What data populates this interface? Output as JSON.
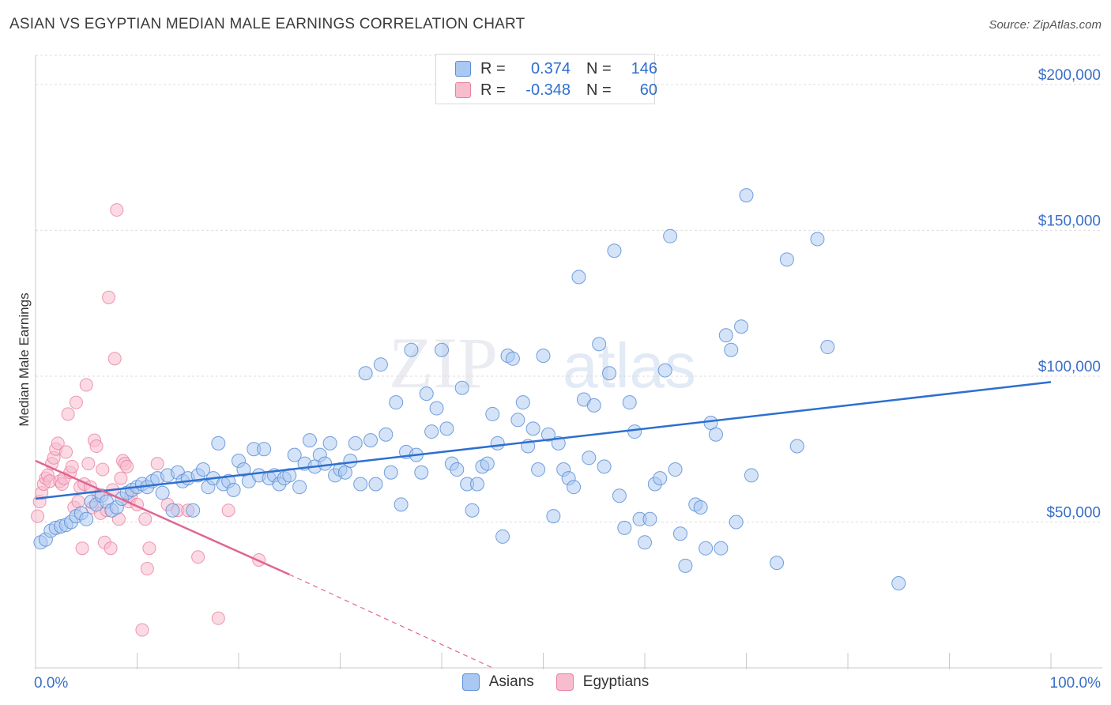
{
  "title": "ASIAN VS EGYPTIAN MEDIAN MALE EARNINGS CORRELATION CHART",
  "source": "Source: ZipAtlas.com",
  "watermark": "ZIPatlas",
  "legend": {
    "rows": [
      {
        "r_label": "R =",
        "r_value": "0.374",
        "n_label": "N =",
        "n_value": "146",
        "color": "#a9c8f2",
        "border": "#5b8fd6"
      },
      {
        "r_label": "R =",
        "r_value": "-0.348",
        "n_label": "N =",
        "n_value": "60",
        "color": "#f7bccd",
        "border": "#e8809f"
      }
    ],
    "bottom": [
      {
        "label": "Asians",
        "color": "#a9c8f2",
        "border": "#5b8fd6"
      },
      {
        "label": "Egyptians",
        "color": "#f7bccd",
        "border": "#e8809f"
      }
    ]
  },
  "chart_data": {
    "type": "scatter",
    "title": "ASIAN VS EGYPTIAN MEDIAN MALE EARNINGS CORRELATION CHART",
    "xlabel": "",
    "ylabel": "Median Male Earnings",
    "xlim": [
      0,
      100
    ],
    "ylim": [
      0,
      210000
    ],
    "x_tick_labels": [
      "0.0%",
      "100.0%"
    ],
    "y_ticks": [
      50000,
      100000,
      150000,
      200000
    ],
    "y_tick_labels": [
      "$50,000",
      "$100,000",
      "$150,000",
      "$200,000"
    ],
    "grid": true,
    "colors": {
      "asians": "#5b8fd6",
      "asians_fill": "#a9c8f2",
      "asians_line": "#2d6fd0",
      "egyptians": "#e8809f",
      "egyptians_fill": "#f7bccd",
      "egyptians_line": "#e06592",
      "axis_label": "#3a6fc8"
    },
    "series": [
      {
        "name": "Asians",
        "trend": {
          "x": [
            0,
            100
          ],
          "y": [
            58000,
            98000
          ]
        },
        "points": [
          [
            0.5,
            43000
          ],
          [
            1,
            44000
          ],
          [
            1.5,
            47000
          ],
          [
            2,
            48000
          ],
          [
            2.5,
            48500
          ],
          [
            3,
            49000
          ],
          [
            3.5,
            50000
          ],
          [
            4,
            52000
          ],
          [
            4.5,
            53000
          ],
          [
            5,
            51000
          ],
          [
            5.5,
            57000
          ],
          [
            6,
            56000
          ],
          [
            6.5,
            59000
          ],
          [
            7,
            57000
          ],
          [
            7.5,
            54000
          ],
          [
            8,
            55000
          ],
          [
            8.5,
            58000
          ],
          [
            9,
            60000
          ],
          [
            9.5,
            61000
          ],
          [
            10,
            62000
          ],
          [
            10.5,
            63000
          ],
          [
            11,
            62000
          ],
          [
            11.5,
            64000
          ],
          [
            12,
            65000
          ],
          [
            12.5,
            60000
          ],
          [
            13,
            66000
          ],
          [
            13.5,
            54000
          ],
          [
            14,
            67000
          ],
          [
            14.5,
            64000
          ],
          [
            15,
            65000
          ],
          [
            15.5,
            54000
          ],
          [
            16,
            66000
          ],
          [
            16.5,
            68000
          ],
          [
            17,
            62000
          ],
          [
            17.5,
            65000
          ],
          [
            18,
            77000
          ],
          [
            18.5,
            63000
          ],
          [
            19,
            64000
          ],
          [
            19.5,
            61000
          ],
          [
            20,
            71000
          ],
          [
            20.5,
            68000
          ],
          [
            21,
            64000
          ],
          [
            21.5,
            75000
          ],
          [
            22,
            66000
          ],
          [
            22.5,
            75000
          ],
          [
            23,
            65000
          ],
          [
            23.5,
            66000
          ],
          [
            24,
            63000
          ],
          [
            24.5,
            65000
          ],
          [
            25,
            66000
          ],
          [
            25.5,
            73000
          ],
          [
            26,
            62000
          ],
          [
            26.5,
            70000
          ],
          [
            27,
            78000
          ],
          [
            27.5,
            69000
          ],
          [
            28,
            73000
          ],
          [
            28.5,
            70000
          ],
          [
            29,
            77000
          ],
          [
            29.5,
            66000
          ],
          [
            30,
            68000
          ],
          [
            30.5,
            67000
          ],
          [
            31,
            71000
          ],
          [
            31.5,
            77000
          ],
          [
            32,
            63000
          ],
          [
            32.5,
            101000
          ],
          [
            33,
            78000
          ],
          [
            33.5,
            63000
          ],
          [
            34,
            104000
          ],
          [
            34.5,
            80000
          ],
          [
            35,
            67000
          ],
          [
            35.5,
            91000
          ],
          [
            36,
            56000
          ],
          [
            36.5,
            74000
          ],
          [
            37,
            109000
          ],
          [
            37.5,
            73000
          ],
          [
            38,
            67000
          ],
          [
            38.5,
            94000
          ],
          [
            39,
            81000
          ],
          [
            39.5,
            89000
          ],
          [
            40,
            109000
          ],
          [
            40.5,
            82000
          ],
          [
            41,
            70000
          ],
          [
            41.5,
            68000
          ],
          [
            42,
            96000
          ],
          [
            42.5,
            63000
          ],
          [
            43,
            54000
          ],
          [
            43.5,
            63000
          ],
          [
            44,
            69000
          ],
          [
            44.5,
            70000
          ],
          [
            45,
            87000
          ],
          [
            45.5,
            77000
          ],
          [
            46,
            45000
          ],
          [
            46.5,
            107000
          ],
          [
            47,
            106000
          ],
          [
            47.5,
            85000
          ],
          [
            48,
            91000
          ],
          [
            48.5,
            76000
          ],
          [
            49,
            82000
          ],
          [
            49.5,
            68000
          ],
          [
            50,
            107000
          ],
          [
            50.5,
            80000
          ],
          [
            51,
            52000
          ],
          [
            51.5,
            77000
          ],
          [
            52,
            68000
          ],
          [
            52.5,
            65000
          ],
          [
            53,
            62000
          ],
          [
            53.5,
            134000
          ],
          [
            54,
            92000
          ],
          [
            54.5,
            72000
          ],
          [
            55,
            90000
          ],
          [
            55.5,
            111000
          ],
          [
            56,
            69000
          ],
          [
            56.5,
            101000
          ],
          [
            57,
            143000
          ],
          [
            57.5,
            59000
          ],
          [
            58,
            48000
          ],
          [
            58.5,
            91000
          ],
          [
            59,
            81000
          ],
          [
            59.5,
            51000
          ],
          [
            60,
            43000
          ],
          [
            60.5,
            51000
          ],
          [
            61,
            63000
          ],
          [
            61.5,
            65000
          ],
          [
            62,
            102000
          ],
          [
            62.5,
            148000
          ],
          [
            63,
            68000
          ],
          [
            63.5,
            46000
          ],
          [
            64,
            35000
          ],
          [
            65,
            56000
          ],
          [
            65.5,
            55000
          ],
          [
            66,
            41000
          ],
          [
            66.5,
            84000
          ],
          [
            67,
            80000
          ],
          [
            67.5,
            41000
          ],
          [
            68,
            114000
          ],
          [
            68.5,
            109000
          ],
          [
            69,
            50000
          ],
          [
            69.5,
            117000
          ],
          [
            70,
            162000
          ],
          [
            70.5,
            66000
          ],
          [
            73,
            36000
          ],
          [
            74,
            140000
          ],
          [
            75,
            76000
          ],
          [
            77,
            147000
          ],
          [
            78,
            110000
          ],
          [
            85,
            29000
          ]
        ]
      },
      {
        "name": "Egyptians",
        "trend": {
          "x": [
            0,
            25
          ],
          "y": [
            71000,
            32000
          ],
          "extended_x": [
            25,
            45
          ],
          "extended_y": [
            32000,
            0
          ]
        },
        "points": [
          [
            0.2,
            52000
          ],
          [
            0.4,
            57000
          ],
          [
            0.6,
            60000
          ],
          [
            0.8,
            63000
          ],
          [
            1,
            65000
          ],
          [
            1.2,
            66000
          ],
          [
            1.4,
            64000
          ],
          [
            1.6,
            70000
          ],
          [
            1.8,
            72000
          ],
          [
            2,
            75000
          ],
          [
            2.2,
            77000
          ],
          [
            2.4,
            64000
          ],
          [
            2.6,
            63000
          ],
          [
            2.8,
            65000
          ],
          [
            3,
            74000
          ],
          [
            3.2,
            87000
          ],
          [
            3.4,
            67000
          ],
          [
            3.6,
            69000
          ],
          [
            3.8,
            55000
          ],
          [
            4,
            91000
          ],
          [
            4.2,
            57000
          ],
          [
            4.4,
            62000
          ],
          [
            4.6,
            41000
          ],
          [
            4.8,
            63000
          ],
          [
            5,
            97000
          ],
          [
            5.2,
            70000
          ],
          [
            5.4,
            62000
          ],
          [
            5.6,
            55000
          ],
          [
            5.8,
            78000
          ],
          [
            6,
            76000
          ],
          [
            6.2,
            59000
          ],
          [
            6.4,
            53000
          ],
          [
            6.6,
            68000
          ],
          [
            6.8,
            43000
          ],
          [
            7,
            54000
          ],
          [
            7.2,
            127000
          ],
          [
            7.4,
            41000
          ],
          [
            7.6,
            61000
          ],
          [
            7.8,
            106000
          ],
          [
            8,
            157000
          ],
          [
            8.2,
            51000
          ],
          [
            8.4,
            65000
          ],
          [
            8.6,
            71000
          ],
          [
            8.8,
            70000
          ],
          [
            9,
            69000
          ],
          [
            9.2,
            57000
          ],
          [
            9.4,
            59000
          ],
          [
            10,
            56000
          ],
          [
            10.5,
            13000
          ],
          [
            10.8,
            51000
          ],
          [
            11,
            34000
          ],
          [
            11.2,
            41000
          ],
          [
            12,
            70000
          ],
          [
            13,
            56000
          ],
          [
            14,
            54000
          ],
          [
            15,
            54000
          ],
          [
            16,
            38000
          ],
          [
            18,
            17000
          ],
          [
            19,
            54000
          ],
          [
            22,
            37000
          ]
        ]
      }
    ]
  }
}
